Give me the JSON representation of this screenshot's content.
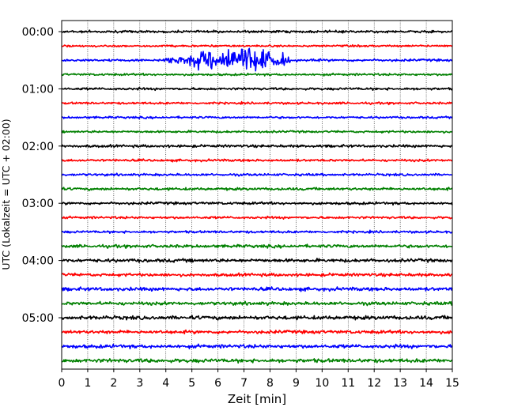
{
  "chart_data": {
    "type": "line",
    "title": "",
    "xlabel": "Zeit  [min]",
    "ylabel": "UTC (Lokalzeit = UTC + 02:00)",
    "xlim": [
      0,
      15
    ],
    "x_ticks": [
      "0",
      "1",
      "2",
      "3",
      "4",
      "5",
      "6",
      "7",
      "8",
      "9",
      "10",
      "11",
      "12",
      "13",
      "14",
      "15"
    ],
    "y_tick_labels": [
      "00:00",
      "01:00",
      "02:00",
      "03:00",
      "04:00",
      "05:00"
    ],
    "trace_interval_minutes": 15,
    "trace_count": 24,
    "trace_colors": [
      "#000000",
      "#ff0000",
      "#0000ff",
      "#008000"
    ],
    "grid": "vertical dotted",
    "traces": [
      {
        "start": "00:00",
        "color": "#000000",
        "noise": 1.0
      },
      {
        "start": "00:15",
        "color": "#ff0000",
        "noise": 0.8
      },
      {
        "start": "00:30",
        "color": "#0000ff",
        "noise": 1.0,
        "event": {
          "from_min": 3.9,
          "to_min": 8.8,
          "peak_min": 6.7,
          "peak_amplitude": 3.3
        }
      },
      {
        "start": "00:45",
        "color": "#008000",
        "noise": 0.9
      },
      {
        "start": "01:00",
        "color": "#000000",
        "noise": 1.0
      },
      {
        "start": "01:15",
        "color": "#ff0000",
        "noise": 0.9
      },
      {
        "start": "01:30",
        "color": "#0000ff",
        "noise": 0.9
      },
      {
        "start": "01:45",
        "color": "#008000",
        "noise": 0.9
      },
      {
        "start": "02:00",
        "color": "#000000",
        "noise": 1.1
      },
      {
        "start": "02:15",
        "color": "#ff0000",
        "noise": 1.0
      },
      {
        "start": "02:30",
        "color": "#0000ff",
        "noise": 1.0
      },
      {
        "start": "02:45",
        "color": "#008000",
        "noise": 1.1
      },
      {
        "start": "03:00",
        "color": "#000000",
        "noise": 1.1
      },
      {
        "start": "03:15",
        "color": "#ff0000",
        "noise": 1.0
      },
      {
        "start": "03:30",
        "color": "#0000ff",
        "noise": 1.0
      },
      {
        "start": "03:45",
        "color": "#008000",
        "noise": 1.3
      },
      {
        "start": "04:00",
        "color": "#000000",
        "noise": 1.4
      },
      {
        "start": "04:15",
        "color": "#ff0000",
        "noise": 1.3
      },
      {
        "start": "04:30",
        "color": "#0000ff",
        "noise": 1.5
      },
      {
        "start": "04:45",
        "color": "#008000",
        "noise": 1.4
      },
      {
        "start": "05:00",
        "color": "#000000",
        "noise": 1.6
      },
      {
        "start": "05:15",
        "color": "#ff0000",
        "noise": 1.4
      },
      {
        "start": "05:30",
        "color": "#0000ff",
        "noise": 1.5
      },
      {
        "start": "05:45",
        "color": "#008000",
        "noise": 1.6
      }
    ]
  }
}
